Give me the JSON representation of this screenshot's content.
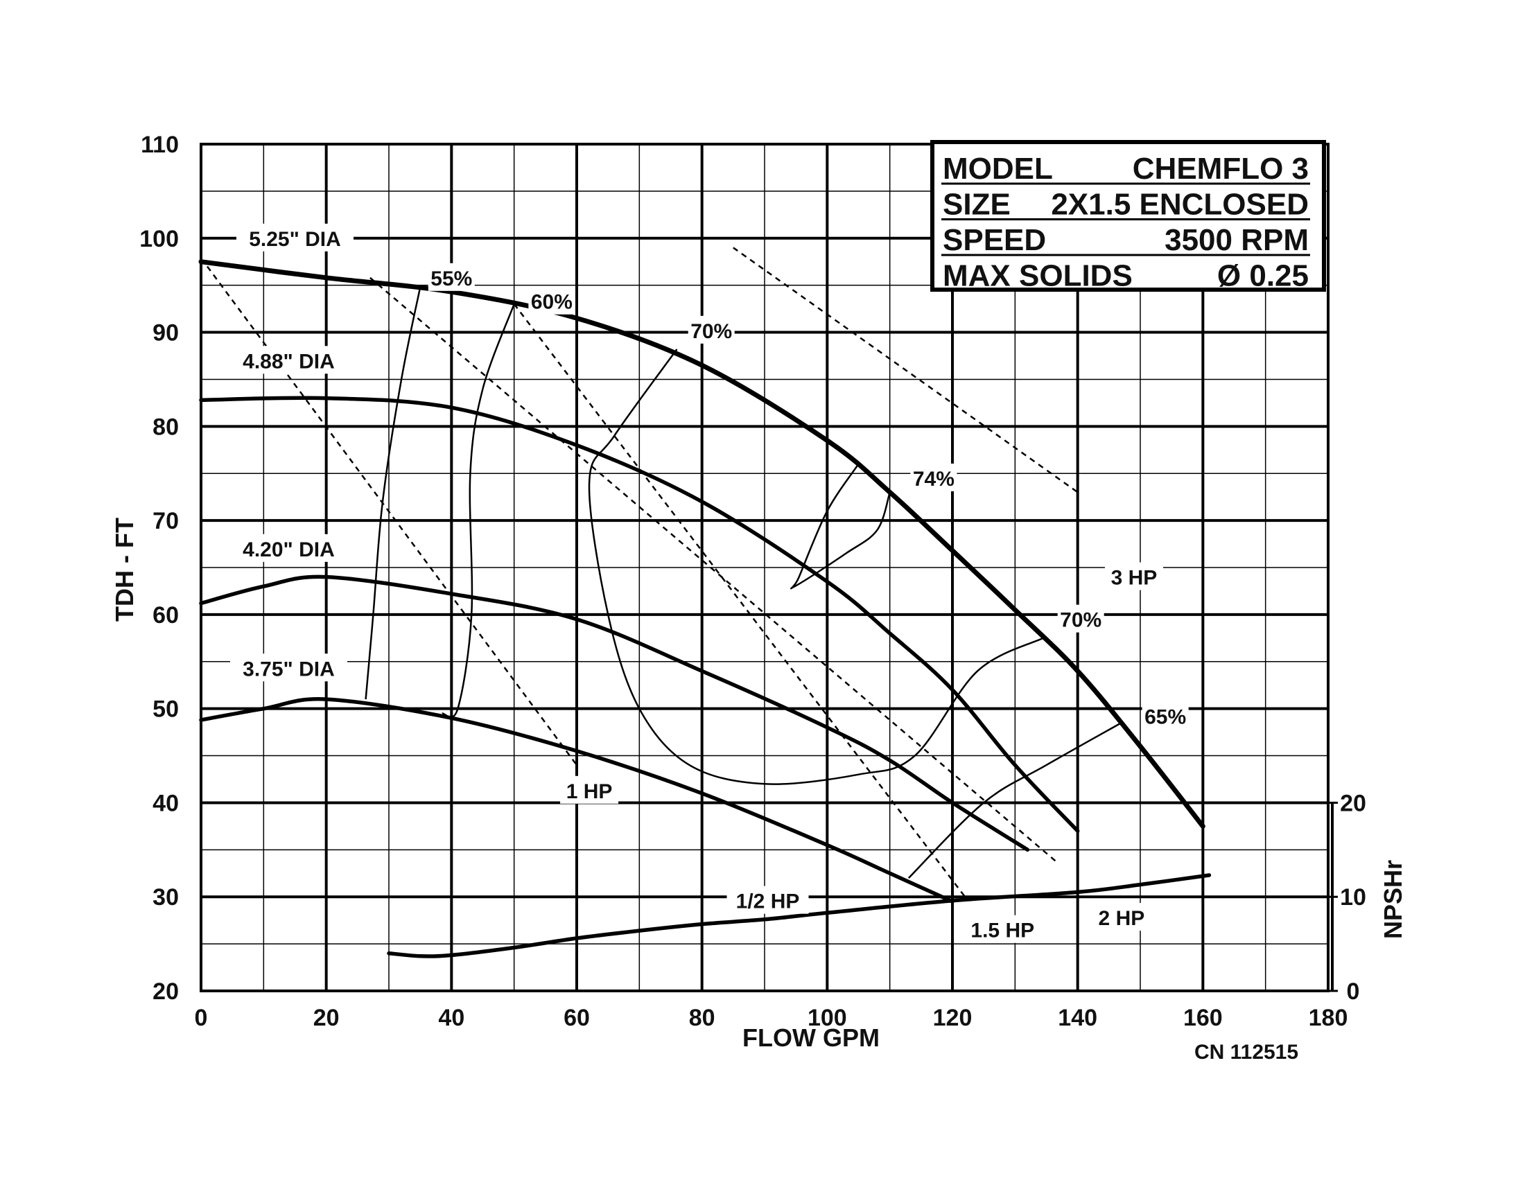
{
  "chart_data": {
    "type": "line",
    "title": "",
    "xlabel": "FLOW GPM",
    "ylabel": "TDH - FT",
    "y2label": "NPSHr",
    "xlim": [
      0,
      180
    ],
    "ylim": [
      20,
      110
    ],
    "y2lim": [
      0,
      20
    ],
    "x_ticks": [
      "0",
      "20",
      "40",
      "60",
      "80",
      "100",
      "120",
      "140",
      "160",
      "180"
    ],
    "y_ticks": [
      "20",
      "30",
      "40",
      "50",
      "60",
      "70",
      "80",
      "90",
      "100",
      "110"
    ],
    "y2_ticks": [
      "0",
      "10",
      "20"
    ],
    "grid": true,
    "info_box": [
      {
        "label": "MODEL",
        "value": "CHEMFLO 3"
      },
      {
        "label": "SIZE",
        "value": "2X1.5 ENCLOSED"
      },
      {
        "label": "SPEED",
        "value": "3500 RPM"
      },
      {
        "label": "MAX SOLIDS",
        "value": "Ø 0.25"
      }
    ],
    "footnote": "CN 112515",
    "impeller_curves": [
      {
        "name": "5.25\" DIA",
        "points": [
          [
            0,
            97.5
          ],
          [
            20,
            95.8
          ],
          [
            40,
            94.3
          ],
          [
            60,
            91.5
          ],
          [
            80,
            86.5
          ],
          [
            100,
            78.5
          ],
          [
            110,
            73
          ],
          [
            120,
            66.8
          ],
          [
            130,
            60.5
          ],
          [
            140,
            54
          ],
          [
            150,
            46
          ],
          [
            160,
            37.5
          ]
        ]
      },
      {
        "name": "4.88\" DIA",
        "points": [
          [
            0,
            82.8
          ],
          [
            20,
            83
          ],
          [
            40,
            82
          ],
          [
            60,
            78
          ],
          [
            80,
            72
          ],
          [
            100,
            63.5
          ],
          [
            110,
            58
          ],
          [
            120,
            52
          ],
          [
            130,
            44
          ],
          [
            140,
            37
          ]
        ]
      },
      {
        "name": "4.20\" DIA",
        "points": [
          [
            0,
            61.2
          ],
          [
            10,
            63
          ],
          [
            20,
            64
          ],
          [
            40,
            62.2
          ],
          [
            60,
            59.5
          ],
          [
            80,
            54
          ],
          [
            100,
            48
          ],
          [
            110,
            44.5
          ],
          [
            120,
            40
          ],
          [
            132,
            35
          ]
        ]
      },
      {
        "name": "3.75\" DIA",
        "points": [
          [
            0,
            48.8
          ],
          [
            10,
            50
          ],
          [
            20,
            51
          ],
          [
            40,
            49
          ],
          [
            60,
            45.5
          ],
          [
            80,
            41
          ],
          [
            100,
            35.5
          ],
          [
            110,
            32.5
          ],
          [
            120,
            29.5
          ]
        ]
      }
    ],
    "efficiency_curves": [
      {
        "name": "55%",
        "points": [
          [
            35,
            94.8
          ],
          [
            32,
            85
          ],
          [
            29,
            72
          ],
          [
            27.5,
            60
          ],
          [
            26.3,
            51
          ]
        ]
      },
      {
        "name": "60%",
        "points": [
          [
            50,
            93
          ],
          [
            45,
            84
          ],
          [
            43,
            75
          ],
          [
            43.2,
            60
          ],
          [
            41,
            50
          ],
          [
            38.5,
            49.5
          ]
        ]
      },
      {
        "name": "70%",
        "points": [
          [
            76,
            88.2
          ],
          [
            66,
            79
          ],
          [
            62,
            74
          ],
          [
            65,
            60
          ],
          [
            70,
            50
          ],
          [
            78,
            44
          ],
          [
            90,
            42
          ],
          [
            105,
            43
          ],
          [
            114,
            45
          ],
          [
            124,
            54
          ],
          [
            134.5,
            57.5
          ]
        ]
      },
      {
        "name": "74%",
        "points": [
          [
            105,
            76
          ],
          [
            100,
            71
          ],
          [
            95.5,
            64
          ],
          [
            94.8,
            63
          ],
          [
            103,
            66.5
          ],
          [
            108,
            69
          ],
          [
            110,
            73
          ]
        ]
      },
      {
        "name": "65%",
        "points": [
          [
            113,
            32
          ],
          [
            125,
            40
          ],
          [
            135,
            44
          ],
          [
            147,
            48.5
          ]
        ]
      }
    ],
    "power_lines": [
      {
        "name": "3 HP",
        "points": [
          [
            85,
            99
          ],
          [
            140,
            73
          ]
        ]
      },
      {
        "name": "2 HP",
        "points": [
          [
            27,
            95.8
          ],
          [
            137,
            33.5
          ]
        ]
      },
      {
        "name": "1.5 HP",
        "points": [
          [
            50,
            93
          ],
          [
            122,
            30
          ]
        ]
      },
      {
        "name": "1 HP",
        "points": [
          [
            1,
            97
          ],
          [
            60,
            44
          ]
        ]
      },
      {
        "name": "1/2 HP",
        "points": []
      }
    ],
    "npshr_curve": {
      "name": "NPSHr",
      "points": [
        [
          30,
          4
        ],
        [
          35,
          3.7
        ],
        [
          40,
          3.8
        ],
        [
          50,
          4.6
        ],
        [
          60,
          5.6
        ],
        [
          70,
          6.4
        ],
        [
          80,
          7.1
        ],
        [
          90,
          7.6
        ],
        [
          100,
          8.3
        ],
        [
          120,
          9.6
        ],
        [
          140,
          10.5
        ],
        [
          150,
          11.3
        ],
        [
          161,
          12.3
        ]
      ]
    },
    "curve_labels": [
      {
        "text": "5.25\" DIA",
        "x": 15,
        "y": 100
      },
      {
        "text": "4.88\" DIA",
        "x": 14,
        "y": 87
      },
      {
        "text": "4.20\" DIA",
        "x": 14,
        "y": 67
      },
      {
        "text": "3.75\" DIA",
        "x": 14,
        "y": 54.3
      },
      {
        "text": "55%",
        "x": 40,
        "y": 95.8
      },
      {
        "text": "60%",
        "x": 56,
        "y": 93.3
      },
      {
        "text": "70%",
        "x": 81.5,
        "y": 90.2
      },
      {
        "text": "74%",
        "x": 117,
        "y": 74.5
      },
      {
        "text": "70%",
        "x": 140.5,
        "y": 59.5
      },
      {
        "text": "65%",
        "x": 154,
        "y": 49.2
      },
      {
        "text": "3 HP",
        "x": 149,
        "y": 64
      },
      {
        "text": "2 HP",
        "x": 147,
        "y": 27.8
      },
      {
        "text": "1.5 HP",
        "x": 128,
        "y": 26.5
      },
      {
        "text": "1 HP",
        "x": 62,
        "y": 41.3
      },
      {
        "text": "1/2 HP",
        "x": 90.5,
        "y": 29.6
      }
    ]
  }
}
